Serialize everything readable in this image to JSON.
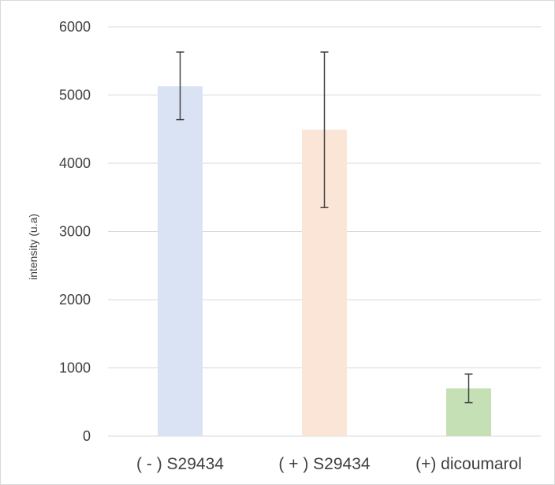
{
  "chart_data": {
    "type": "bar",
    "title": "",
    "xlabel": "",
    "ylabel": "intensity (u.a)",
    "ylim": [
      0,
      6000
    ],
    "yticks": [
      0,
      1000,
      2000,
      3000,
      4000,
      5000,
      6000
    ],
    "ytick_labels": [
      "0",
      "1000",
      "2000",
      "3000",
      "4000",
      "5000",
      "6000"
    ],
    "categories": [
      "( - ) S29434",
      "( + ) S29434",
      "(+) dicoumarol"
    ],
    "values": [
      5130,
      4490,
      700
    ],
    "error_bars": [
      {
        "low": 4640,
        "high": 5630
      },
      {
        "low": 3350,
        "high": 5630
      },
      {
        "low": 490,
        "high": 910
      }
    ],
    "bar_colors": [
      "#dae3f3",
      "#fbe5d6",
      "#c5e0b4"
    ],
    "grid": true,
    "legend": "none"
  }
}
